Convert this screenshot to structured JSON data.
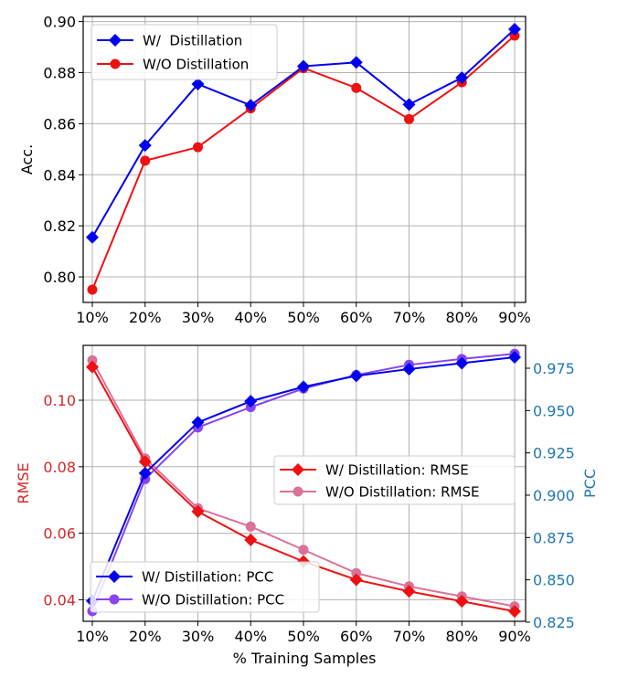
{
  "chart_data": [
    {
      "type": "line",
      "categories": [
        "10%",
        "20%",
        "30%",
        "40%",
        "50%",
        "60%",
        "70%",
        "80%",
        "90%"
      ],
      "xlabel": "",
      "ylabel": "Acc.",
      "ylim": [
        0.79,
        0.902
      ],
      "yticks": [
        0.8,
        0.82,
        0.84,
        0.86,
        0.88,
        0.9
      ],
      "grid": true,
      "legend_position": "upper-left",
      "series": [
        {
          "name": "W/  Distillation",
          "color": "#0000ee",
          "marker": "diamond",
          "values": [
            0.8155,
            0.8515,
            0.8755,
            0.8672,
            0.8825,
            0.884,
            0.8675,
            0.878,
            0.897
          ]
        },
        {
          "name": "W/O Distillation",
          "color": "#ee1111",
          "marker": "circle",
          "values": [
            0.795,
            0.8455,
            0.8508,
            0.866,
            0.8818,
            0.874,
            0.8618,
            0.8762,
            0.8945
          ]
        }
      ]
    },
    {
      "type": "line",
      "categories": [
        "10%",
        "20%",
        "30%",
        "40%",
        "50%",
        "60%",
        "70%",
        "80%",
        "90%"
      ],
      "xlabel": "% Training Samples",
      "ylabel_left": "RMSE",
      "ylabel_right": "PCC",
      "ylim_left": [
        0.0335,
        0.1165
      ],
      "ylim_right": [
        0.8255,
        0.9885
      ],
      "yticks_left": [
        0.04,
        0.06,
        0.08,
        0.1
      ],
      "yticks_right": [
        0.825,
        0.85,
        0.875,
        0.9,
        0.925,
        0.95,
        0.975
      ],
      "grid": true,
      "left_axis_color": "#d62728",
      "right_axis_color": "#1f77b4",
      "legend_left_position": "center-right",
      "legend_right_position": "lower-left",
      "series_left": [
        {
          "name": "W/ Distillation: RMSE",
          "color": "#ee1111",
          "marker": "diamond",
          "values": [
            0.11,
            0.0815,
            0.0665,
            0.058,
            0.0515,
            0.046,
            0.0425,
            0.0395,
            0.0365
          ]
        },
        {
          "name": "W/O Distillation: RMSE",
          "color": "#d9719a",
          "marker": "circle",
          "values": [
            0.112,
            0.0825,
            0.0675,
            0.062,
            0.055,
            0.048,
            0.044,
            0.041,
            0.038
          ]
        }
      ],
      "series_right": [
        {
          "name": "W/ Distillation: PCC",
          "color": "#0000ee",
          "marker": "diamond",
          "values": [
            0.8375,
            0.913,
            0.943,
            0.9555,
            0.964,
            0.9705,
            0.9745,
            0.978,
            0.9815
          ]
        },
        {
          "name": "W/O Distillation: PCC",
          "color": "#8844ee",
          "marker": "circle",
          "values": [
            0.8315,
            0.9095,
            0.94,
            0.952,
            0.963,
            0.971,
            0.977,
            0.9805,
            0.9835
          ]
        }
      ]
    }
  ]
}
